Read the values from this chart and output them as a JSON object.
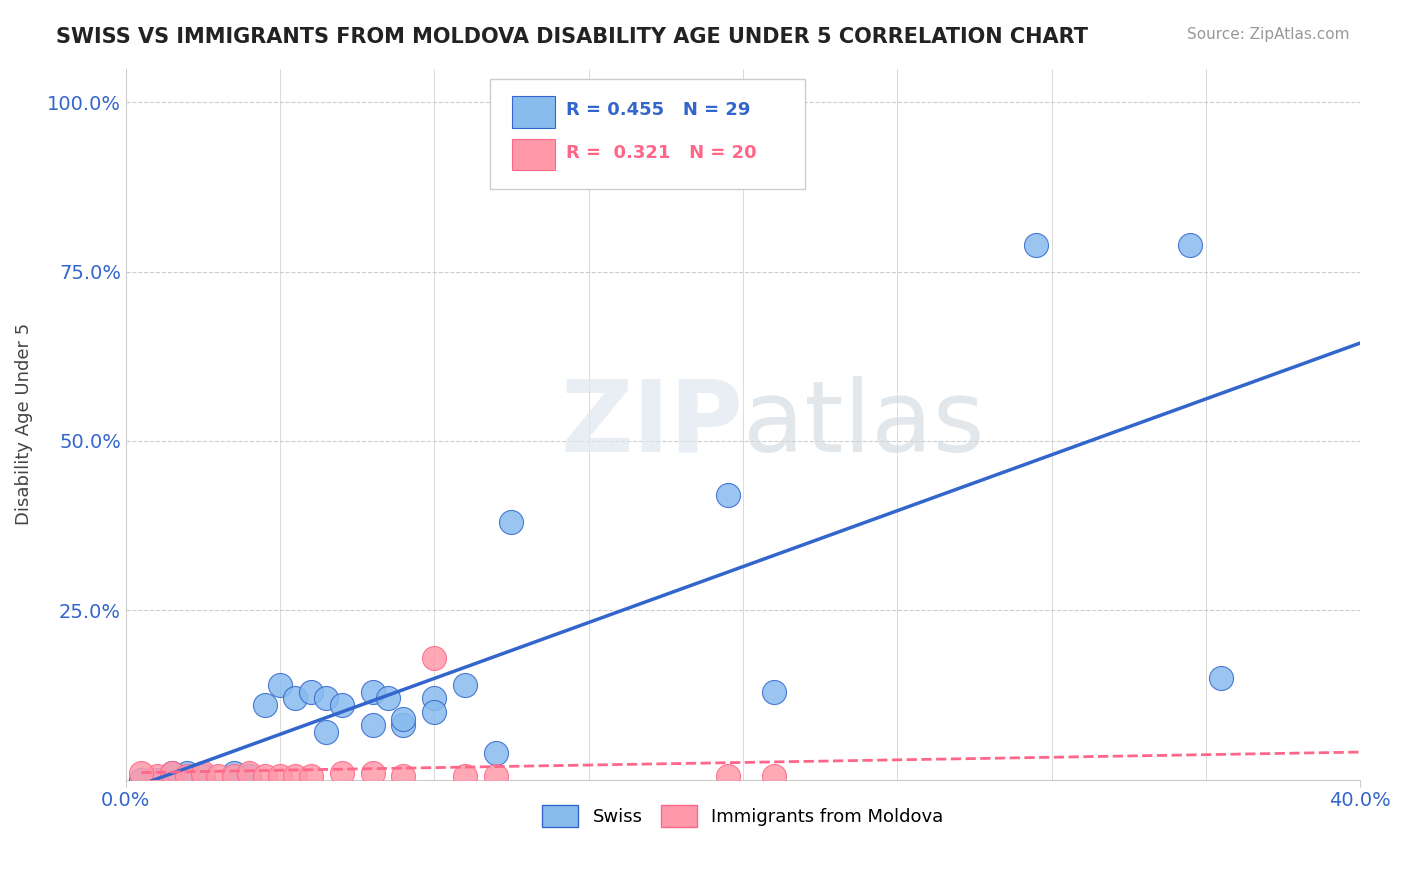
{
  "title": "SWISS VS IMMIGRANTS FROM MOLDOVA DISABILITY AGE UNDER 5 CORRELATION CHART",
  "source": "Source: ZipAtlas.com",
  "ylabel": "Disability Age Under 5",
  "y_tick_values": [
    1.0,
    0.75,
    0.5,
    0.25
  ],
  "xlim": [
    0.0,
    0.4
  ],
  "ylim": [
    0.0,
    1.05
  ],
  "legend_swiss": "Swiss",
  "legend_moldova": "Immigrants from Moldova",
  "R_swiss": 0.455,
  "N_swiss": 29,
  "R_moldova": 0.321,
  "N_moldova": 20,
  "swiss_color": "#88bbee",
  "moldova_color": "#ff99aa",
  "swiss_line_color": "#3366cc",
  "moldova_line_color": "#ff6688",
  "watermark_zip": "ZIP",
  "watermark_atlas": "atlas",
  "swiss_x": [
    0.295,
    0.345,
    0.01,
    0.02,
    0.025,
    0.035,
    0.04,
    0.045,
    0.05,
    0.055,
    0.06,
    0.065,
    0.065,
    0.07,
    0.08,
    0.08,
    0.085,
    0.09,
    0.09,
    0.1,
    0.1,
    0.11,
    0.12,
    0.125,
    0.195,
    0.21,
    0.355,
    0.005,
    0.015
  ],
  "swiss_y": [
    0.79,
    0.79,
    0.0,
    0.01,
    0.005,
    0.01,
    0.005,
    0.11,
    0.14,
    0.12,
    0.13,
    0.07,
    0.12,
    0.11,
    0.08,
    0.13,
    0.12,
    0.08,
    0.09,
    0.12,
    0.1,
    0.14,
    0.04,
    0.38,
    0.42,
    0.13,
    0.15,
    0.0,
    0.01
  ],
  "moldova_x": [
    0.01,
    0.015,
    0.02,
    0.025,
    0.03,
    0.035,
    0.04,
    0.045,
    0.05,
    0.055,
    0.07,
    0.08,
    0.09,
    0.1,
    0.11,
    0.12,
    0.195,
    0.21,
    0.005,
    0.06
  ],
  "moldova_y": [
    0.005,
    0.01,
    0.005,
    0.01,
    0.005,
    0.005,
    0.01,
    0.005,
    0.005,
    0.005,
    0.01,
    0.01,
    0.005,
    0.18,
    0.005,
    0.005,
    0.005,
    0.005,
    0.01,
    0.005
  ]
}
